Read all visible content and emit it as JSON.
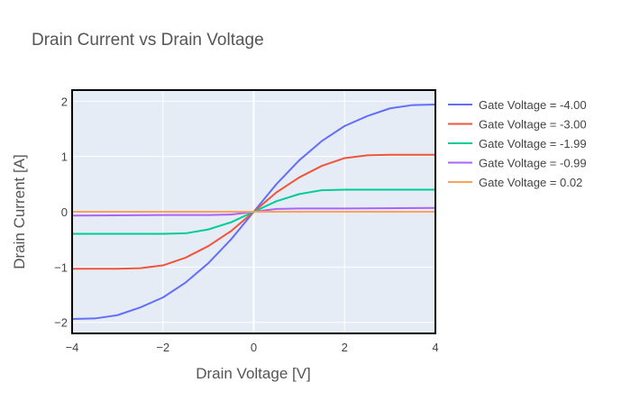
{
  "chart_data": {
    "type": "line",
    "title": "Drain Current vs Drain Voltage",
    "xlabel": "Drain Voltage [V]",
    "ylabel": "Drain Current [A]",
    "xlim": [
      -4,
      4
    ],
    "ylim": [
      -2.2,
      2.2
    ],
    "xticks": [
      -4,
      -2,
      0,
      2,
      4
    ],
    "xtick_labels": [
      "−4",
      "−2",
      "0",
      "2",
      "4"
    ],
    "yticks": [
      -2,
      -1,
      0,
      1,
      2
    ],
    "ytick_labels": [
      "−2",
      "−1",
      "0",
      "1",
      "2"
    ],
    "grid": true,
    "legend_position": "right",
    "colors": {
      "plot_background": "#e5ecf6",
      "grid": "#ffffff",
      "frame": "#000000",
      "text": "#444444",
      "title_text": "#555555"
    },
    "series": [
      {
        "name": "Gate Voltage = -4.00",
        "color": "#636efa",
        "x": [
          -4.0,
          -3.5,
          -3.0,
          -2.5,
          -2.0,
          -1.5,
          -1.0,
          -0.5,
          0.0,
          0.5,
          1.0,
          1.5,
          2.0,
          2.5,
          3.0,
          3.5,
          4.0
        ],
        "y": [
          -1.94,
          -1.93,
          -1.87,
          -1.73,
          -1.55,
          -1.28,
          -0.93,
          -0.5,
          0.0,
          0.5,
          0.93,
          1.28,
          1.55,
          1.73,
          1.87,
          1.93,
          1.94
        ]
      },
      {
        "name": "Gate Voltage = -3.00",
        "color": "#ef553b",
        "x": [
          -4.0,
          -3.0,
          -2.5,
          -2.0,
          -1.5,
          -1.0,
          -0.5,
          0.0,
          0.5,
          1.0,
          1.5,
          2.0,
          2.5,
          3.0,
          4.0
        ],
        "y": [
          -1.03,
          -1.03,
          -1.02,
          -0.97,
          -0.83,
          -0.62,
          -0.35,
          0.0,
          0.35,
          0.62,
          0.83,
          0.97,
          1.02,
          1.03,
          1.03
        ]
      },
      {
        "name": "Gate Voltage = -1.99",
        "color": "#00cc96",
        "x": [
          -4.0,
          -3.0,
          -2.0,
          -1.5,
          -1.0,
          -0.5,
          0.0,
          0.5,
          1.0,
          1.5,
          2.0,
          3.0,
          4.0
        ],
        "y": [
          -0.4,
          -0.4,
          -0.4,
          -0.39,
          -0.32,
          -0.19,
          0.0,
          0.19,
          0.32,
          0.39,
          0.4,
          0.4,
          0.4
        ]
      },
      {
        "name": "Gate Voltage = -0.99",
        "color": "#ab63fa",
        "x": [
          -4.0,
          -2.0,
          -1.0,
          -0.5,
          0.0,
          0.5,
          1.0,
          2.0,
          4.0
        ],
        "y": [
          -0.07,
          -0.06,
          -0.06,
          -0.05,
          0.0,
          0.05,
          0.06,
          0.06,
          0.07
        ]
      },
      {
        "name": "Gate Voltage = 0.02",
        "color": "#ffa15a",
        "x": [
          -4.0,
          -2.0,
          0.0,
          2.0,
          4.0
        ],
        "y": [
          0.0,
          0.0,
          0.0,
          0.0,
          0.0
        ]
      }
    ]
  }
}
